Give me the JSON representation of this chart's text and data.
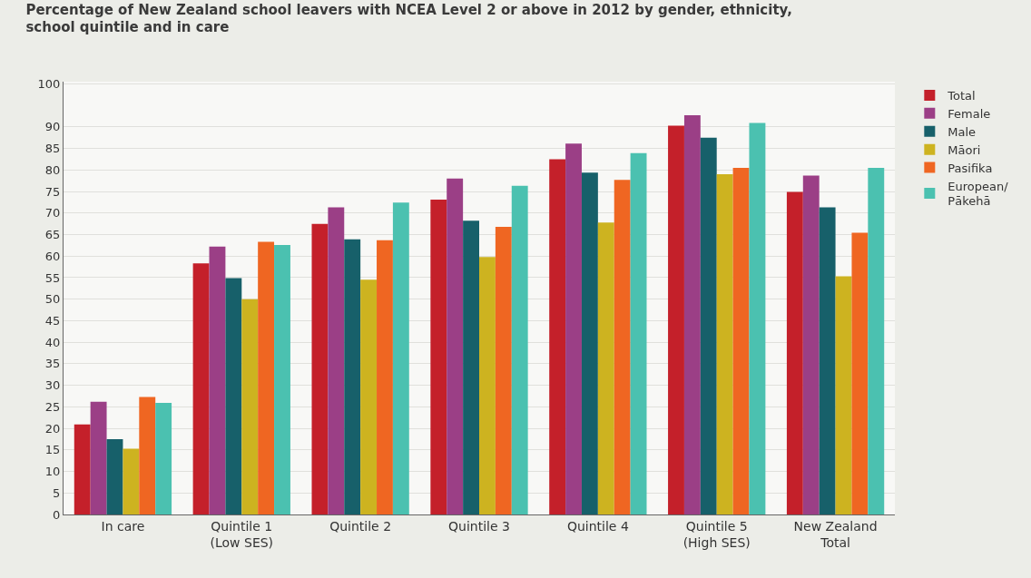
{
  "chart_data": {
    "type": "bar",
    "title": "Percentage of New Zealand school leavers with NCEA Level 2 or above in 2012 by gender, ethnicity,\nschool quintile and in care",
    "categories": [
      "In care",
      "Quintile 1\n(Low SES)",
      "Quintile 2",
      "Quintile 3",
      "Quintile 4",
      "Quintile 5\n(High SES)",
      "New Zealand\nTotal"
    ],
    "series": [
      {
        "name": "Total",
        "color": "#c4202a",
        "values": [
          20.9,
          58.3,
          67.5,
          73.1,
          82.5,
          90.3,
          74.9
        ]
      },
      {
        "name": "Female",
        "color": "#9b3f86",
        "values": [
          26.2,
          62.2,
          71.3,
          78.0,
          86.1,
          92.7,
          78.7
        ]
      },
      {
        "name": "Male",
        "color": "#17606a",
        "values": [
          17.5,
          54.9,
          63.9,
          68.2,
          79.4,
          87.5,
          71.3
        ]
      },
      {
        "name": "Māori",
        "color": "#cdb320",
        "values": [
          15.3,
          50.0,
          54.5,
          59.8,
          67.8,
          79.0,
          55.3
        ]
      },
      {
        "name": "Pasifika",
        "color": "#ef6622",
        "values": [
          27.3,
          63.3,
          63.7,
          66.8,
          77.7,
          80.5,
          65.4
        ]
      },
      {
        "name": "European/\nPākehā",
        "color": "#4bc1b0",
        "values": [
          25.9,
          62.6,
          72.4,
          76.3,
          83.9,
          90.9,
          80.5
        ]
      }
    ],
    "ylim": [
      0,
      100.5
    ],
    "yticks": [
      0,
      5,
      10,
      15,
      20,
      25,
      30,
      35,
      40,
      45,
      50,
      55,
      60,
      65,
      70,
      75,
      80,
      85,
      90,
      100
    ],
    "grid": "y",
    "legend": "top right"
  }
}
